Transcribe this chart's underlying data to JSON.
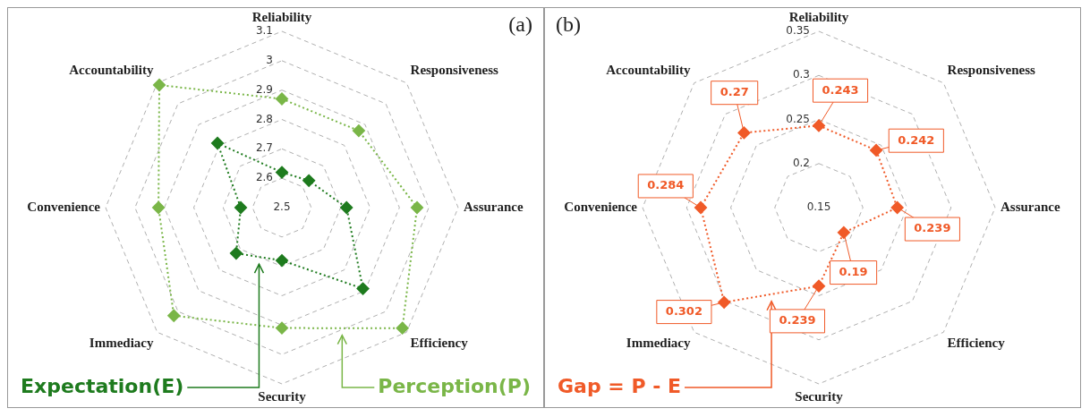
{
  "chart_data": [
    {
      "type": "radar",
      "categories": [
        "Reliability",
        "Responsiveness",
        "Assurance",
        "Efficiency",
        "Security",
        "Immediacy",
        "Convenience",
        "Accountability"
      ],
      "series": [
        {
          "name": "Expectation(E)",
          "color": "#1e7b1e",
          "values": [
            2.62,
            2.63,
            2.72,
            2.89,
            2.68,
            2.72,
            2.64,
            2.81
          ]
        },
        {
          "name": "Perception(P)",
          "color": "#7ab648",
          "values": [
            2.87,
            2.87,
            2.96,
            3.08,
            2.91,
            3.02,
            2.92,
            3.09
          ]
        }
      ],
      "ylim": [
        2.5,
        3.1
      ],
      "yticks": [
        2.5,
        2.6,
        2.7,
        2.8,
        2.9,
        3,
        3.1
      ],
      "grid": true,
      "legend": false,
      "marker": "diamond",
      "line_style": "dotted",
      "annotations": [
        "(a)"
      ]
    },
    {
      "type": "radar",
      "categories": [
        "Reliability",
        "Responsiveness",
        "Assurance",
        "Efficiency",
        "Security",
        "Immediacy",
        "Convenience",
        "Accountability"
      ],
      "series": [
        {
          "name": "Gap = P - E",
          "color": "#f05a28",
          "values": [
            0.243,
            0.242,
            0.239,
            0.19,
            0.239,
            0.302,
            0.284,
            0.27
          ]
        }
      ],
      "ylim": [
        0.15,
        0.35
      ],
      "yticks": [
        0.15,
        0.2,
        0.25,
        0.3,
        0.35
      ],
      "grid": true,
      "legend": false,
      "marker": "diamond",
      "line_style": "dotted",
      "data_labels": true,
      "annotations": [
        "(b)"
      ]
    }
  ]
}
